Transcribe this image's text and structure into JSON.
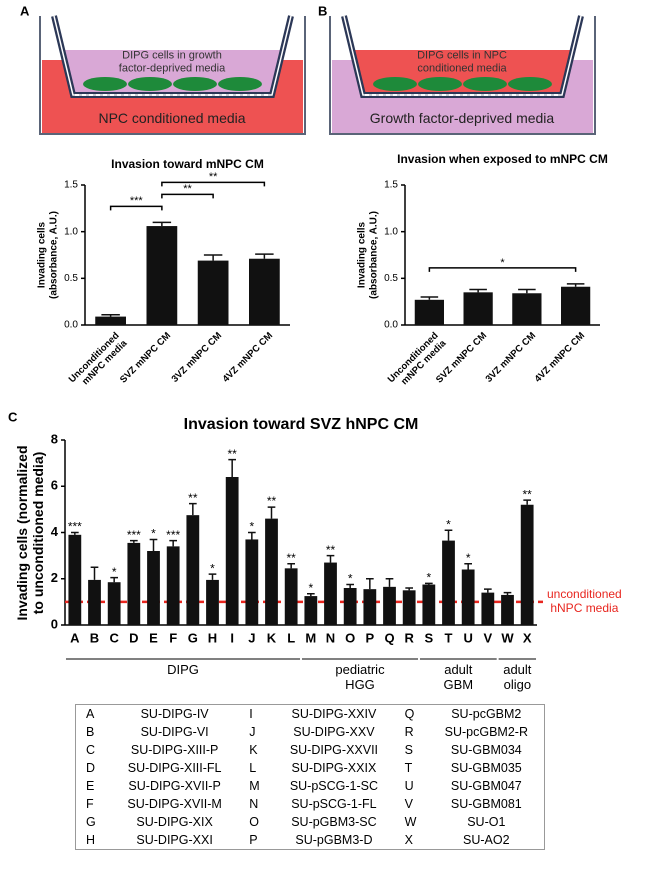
{
  "diagrams": [
    {
      "panel": "A",
      "insert_text": "DIPG cells in growth\nfactor-deprived media",
      "well_text": "NPC conditioned media"
    },
    {
      "panel": "B",
      "insert_text": "DIPG cells in NPC\nconditioned media",
      "well_text": "Growth factor-deprived media"
    }
  ],
  "chart_data": [
    {
      "type": "bar",
      "title": "Invasion toward mNPC CM",
      "y_label": "Invading cells\n(absorbance, A.U.)",
      "categories": [
        "Unconditioned\nmNPC media",
        "SVZ mNPC CM",
        "3VZ mNPC CM",
        "4VZ mNPC CM"
      ],
      "values": [
        0.09,
        1.06,
        0.69,
        0.71
      ],
      "errors": [
        0.02,
        0.04,
        0.06,
        0.05
      ],
      "color": "#111111",
      "ylim": [
        0,
        1.5
      ],
      "yticks": [
        {
          "value": 0,
          "label": "0.0"
        },
        {
          "value": 0.5,
          "label": "0.5"
        },
        {
          "value": 1,
          "label": "1.0"
        },
        {
          "value": 1.5,
          "label": "1.5"
        }
      ],
      "brackets": [
        {
          "from": 0,
          "to": 1,
          "label": "***"
        },
        {
          "from": 1,
          "to": 2,
          "label": "**"
        },
        {
          "from": 1,
          "to": 3,
          "label": "**"
        }
      ]
    },
    {
      "type": "bar",
      "title": "Invasion when exposed to mNPC CM",
      "y_label": "Invading cells\n(absorbance, A.U.)",
      "categories": [
        "Unconditioned\nmNPC media",
        "SVZ mNPC CM",
        "3VZ mNPC CM",
        "4VZ mNPC CM"
      ],
      "values": [
        0.27,
        0.35,
        0.34,
        0.41
      ],
      "errors": [
        0.03,
        0.03,
        0.04,
        0.03
      ],
      "color": "#111111",
      "ylim": [
        0,
        1.5
      ],
      "yticks": [
        {
          "value": 0,
          "label": "0.0"
        },
        {
          "value": 0.5,
          "label": "0.5"
        },
        {
          "value": 1,
          "label": "1.0"
        },
        {
          "value": 1.5,
          "label": "1.5"
        }
      ],
      "brackets": [
        {
          "from": 0,
          "to": 3,
          "label": "*"
        }
      ]
    },
    {
      "type": "bar",
      "panel": "C",
      "title": "Invasion toward SVZ hNPC CM",
      "y_label": "Invading cells (normalized\nto unconditioned media)",
      "categories": [
        "A",
        "B",
        "C",
        "D",
        "E",
        "F",
        "G",
        "H",
        "I",
        "J",
        "K",
        "L",
        "M",
        "N",
        "O",
        "P",
        "Q",
        "R",
        "S",
        "T",
        "U",
        "V",
        "W",
        "X"
      ],
      "values": [
        3.9,
        1.95,
        1.85,
        3.55,
        3.2,
        3.4,
        4.75,
        1.95,
        6.4,
        3.7,
        4.6,
        2.45,
        1.25,
        2.7,
        1.6,
        1.55,
        1.65,
        1.5,
        1.75,
        3.65,
        2.4,
        1.4,
        1.3,
        5.2
      ],
      "errors": [
        0.1,
        0.55,
        0.2,
        0.1,
        0.5,
        0.25,
        0.5,
        0.25,
        0.75,
        0.3,
        0.5,
        0.2,
        0.1,
        0.3,
        0.15,
        0.45,
        0.35,
        0.1,
        0.05,
        0.45,
        0.25,
        0.15,
        0.1,
        0.2
      ],
      "significance": [
        "***",
        null,
        "*",
        "***",
        "*",
        "***",
        "**",
        "*",
        "**",
        "*",
        "**",
        "**",
        "*",
        "**",
        "*",
        null,
        null,
        null,
        "*",
        "*",
        "*",
        null,
        null,
        "**"
      ],
      "color": "#111111",
      "ylim": [
        0,
        8
      ],
      "yticks": [
        0,
        2,
        4,
        6,
        8
      ],
      "reference_line": {
        "value": 1,
        "label": "unconditioned\nhNPC media",
        "color": "#e8261f"
      },
      "groups": [
        {
          "label": "DIPG",
          "from": 0,
          "to": 11
        },
        {
          "label": "pediatric\nHGG",
          "from": 12,
          "to": 17
        },
        {
          "label": "adult\nGBM",
          "from": 18,
          "to": 21
        },
        {
          "label": "adult\noligo",
          "from": 22,
          "to": 23
        }
      ]
    }
  ],
  "table": {
    "rows": [
      [
        "A",
        "SU-DIPG-IV",
        "I",
        "SU-DIPG-XXIV",
        "Q",
        "SU-pcGBM2"
      ],
      [
        "B",
        "SU-DIPG-VI",
        "J",
        "SU-DIPG-XXV",
        "R",
        "SU-pcGBM2-R"
      ],
      [
        "C",
        "SU-DIPG-XIII-P",
        "K",
        "SU-DIPG-XXVII",
        "S",
        "SU-GBM034"
      ],
      [
        "D",
        "SU-DIPG-XIII-FL",
        "L",
        "SU-DIPG-XXIX",
        "T",
        "SU-GBM035"
      ],
      [
        "E",
        "SU-DIPG-XVII-P",
        "M",
        "SU-pSCG-1-SC",
        "U",
        "SU-GBM047"
      ],
      [
        "F",
        "SU-DIPG-XVII-M",
        "N",
        "SU-pSCG-1-FL",
        "V",
        "SU-GBM081"
      ],
      [
        "G",
        "SU-DIPG-XIX",
        "O",
        "SU-pGBM3-SC",
        "W",
        "SU-O1"
      ],
      [
        "H",
        "SU-DIPG-XXI",
        "P",
        "SU-pGBM3-D",
        "X",
        "SU-AO2"
      ]
    ]
  }
}
